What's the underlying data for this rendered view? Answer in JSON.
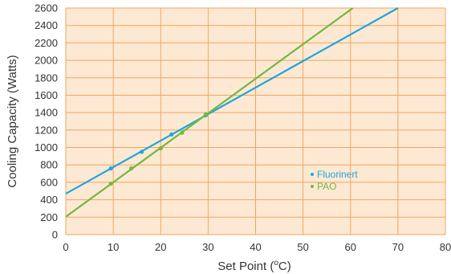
{
  "chart_data": {
    "type": "line",
    "xlabel": "Set Point (",
    "xlabel_sup": "o",
    "xlabel_suffix": "C)",
    "ylabel": "Cooling Capacity (Watts)",
    "xlim": [
      0,
      80
    ],
    "ylim": [
      0,
      2600
    ],
    "x_ticks": [
      "0",
      "10",
      "20",
      "30",
      "40",
      "50",
      "60",
      "70",
      "80"
    ],
    "y_ticks": [
      "0",
      "200",
      "400",
      "600",
      "800",
      "1000",
      "1200",
      "1400",
      "1600",
      "1800",
      "2000",
      "2200",
      "2400",
      "2600"
    ],
    "grid": true,
    "legend_position": "right",
    "background_color": "#fde9d3",
    "grid_color": "#f3a45d",
    "series": [
      {
        "name": "Fluorinert",
        "color": "#1fa6dc",
        "line": [
          [
            0,
            470
          ],
          [
            70,
            2600
          ]
        ],
        "points": [
          [
            9.5,
            760
          ],
          [
            16,
            950
          ],
          [
            22.3,
            1150
          ],
          [
            29.5,
            1370
          ]
        ]
      },
      {
        "name": "PAO",
        "color": "#72b843",
        "line": [
          [
            0,
            205
          ],
          [
            60.5,
            2600
          ]
        ],
        "points": [
          [
            9.5,
            585
          ],
          [
            13.8,
            760
          ],
          [
            20,
            990
          ],
          [
            24.5,
            1170
          ],
          [
            29.5,
            1380
          ]
        ]
      }
    ]
  }
}
